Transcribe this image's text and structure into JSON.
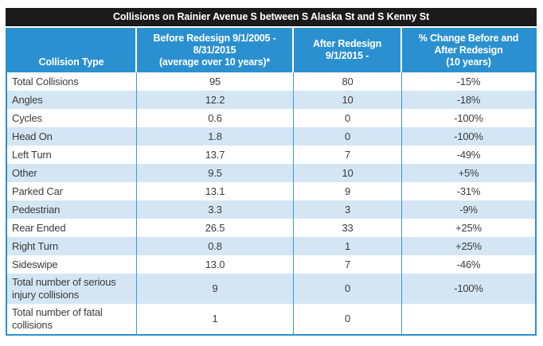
{
  "colors": {
    "title_bar": "#1b1b1b",
    "header_blue": "#2b90cf",
    "row_alt_blue": "#d4e6f4",
    "row_white": "#ffffff",
    "divider_blue": "#4198d2",
    "body_text": "#3b3b3b",
    "header_text": "#ffffff"
  },
  "chart_data": {
    "type": "table",
    "title": "Collisions on Rainier Avenue S between S Alaska St and S Kenny St",
    "columns": [
      "Collision Type",
      "Before Redesign 9/1/2005 -\n8/31/2015\n(average over 10 years)*",
      "After Redesign\n9/1/2015 -",
      "% Change Before and\nAfter Redesign\n(10 years)"
    ],
    "rows": [
      [
        "Total Collisions",
        "95",
        "80",
        "-15%"
      ],
      [
        "Angles",
        "12.2",
        "10",
        "-18%"
      ],
      [
        "Cycles",
        "0.6",
        "0",
        "-100%"
      ],
      [
        "Head On",
        "1.8",
        "0",
        "-100%"
      ],
      [
        "Left Turn",
        "13.7",
        "7",
        "-49%"
      ],
      [
        "Other",
        "9.5",
        "10",
        "+5%"
      ],
      [
        "Parked Car",
        "13.1",
        "9",
        "-31%"
      ],
      [
        "Pedestrian",
        "3.3",
        "3",
        "-9%"
      ],
      [
        "Rear Ended",
        "26.5",
        "33",
        "+25%"
      ],
      [
        "Right Turn",
        "0.8",
        "1",
        "+25%"
      ],
      [
        "Sideswipe",
        "13.0",
        "7",
        "-46%"
      ],
      [
        "Total number of serious injury collisions",
        "9",
        "0",
        "-100%"
      ],
      [
        "Total number of fatal collisions",
        "1",
        "0",
        ""
      ]
    ]
  }
}
